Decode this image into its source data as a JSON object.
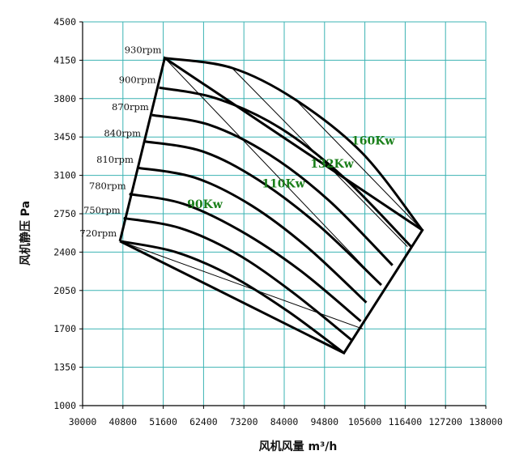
{
  "chart_data": {
    "type": "line",
    "xlabel": "风机风量 m³/h",
    "ylabel": "风机静压 Pa",
    "xlim": [
      30000,
      138000
    ],
    "ylim": [
      1000,
      4500
    ],
    "xticks": [
      "30000",
      "40800",
      "51600",
      "62400",
      "73200",
      "84000",
      "94800",
      "105600",
      "116400",
      "127200",
      "138000"
    ],
    "yticks": [
      "1000",
      "1350",
      "1700",
      "2050",
      "2400",
      "2750",
      "3100",
      "3450",
      "3800",
      "4150",
      "4500"
    ],
    "grid": true,
    "grid_color": "#3bb3b3",
    "curve_color": "#000000",
    "power_label_color": "#1a7f1a",
    "series": [
      {
        "name": "720rpm",
        "x": [
          40000,
          55000,
          70000,
          85000,
          100000
        ],
        "y": [
          2500,
          2400,
          2180,
          1860,
          1480
        ]
      },
      {
        "name": "750rpm",
        "x": [
          41000,
          56000,
          71000,
          86000,
          102000
        ],
        "y": [
          2710,
          2620,
          2390,
          2040,
          1600
        ]
      },
      {
        "name": "780rpm",
        "x": [
          42500,
          57000,
          72000,
          88000,
          104500
        ],
        "y": [
          2930,
          2840,
          2600,
          2240,
          1770
        ]
      },
      {
        "name": "810rpm",
        "x": [
          44500,
          60000,
          75000,
          90000,
          106000
        ],
        "y": [
          3170,
          3080,
          2830,
          2450,
          1940
        ]
      },
      {
        "name": "840rpm",
        "x": [
          46500,
          62000,
          77000,
          93000,
          110000
        ],
        "y": [
          3410,
          3320,
          3060,
          2650,
          2100
        ]
      },
      {
        "name": "870rpm",
        "x": [
          48600,
          64000,
          80000,
          96000,
          113000
        ],
        "y": [
          3650,
          3560,
          3290,
          2870,
          2280
        ]
      },
      {
        "name": "900rpm",
        "x": [
          50500,
          66000,
          83000,
          100000,
          118000
        ],
        "y": [
          3900,
          3800,
          3530,
          3080,
          2450
        ]
      },
      {
        "name": "930rpm",
        "x": [
          52000,
          70000,
          87000,
          105000,
          121000
        ],
        "y": [
          4170,
          4080,
          3790,
          3300,
          2600
        ]
      }
    ],
    "boundary": {
      "x": [
        40000,
        52000,
        121000,
        100000,
        40000
      ],
      "y": [
        2500,
        4170,
        2600,
        1480,
        2500
      ]
    },
    "power_lines": [
      {
        "label": "90Kw",
        "x": [
          40000,
          105000
        ],
        "y": [
          2500,
          1700
        ]
      },
      {
        "label": "110Kw",
        "x": [
          52000,
          110000
        ],
        "y": [
          4170,
          2100
        ]
      },
      {
        "label": "132Kw",
        "x": [
          70000,
          117000
        ],
        "y": [
          4080,
          2450
        ]
      },
      {
        "label": "160Kw",
        "x": [
          87000,
          121000
        ],
        "y": [
          3790,
          2600
        ]
      }
    ],
    "power_labels": [
      {
        "text": "90Kw",
        "x": 58000,
        "y": 2800
      },
      {
        "text": "110Kw",
        "x": 78000,
        "y": 2990
      },
      {
        "text": "132Kw",
        "x": 91000,
        "y": 3170
      },
      {
        "text": "160Kw",
        "x": 102000,
        "y": 3380
      }
    ]
  }
}
